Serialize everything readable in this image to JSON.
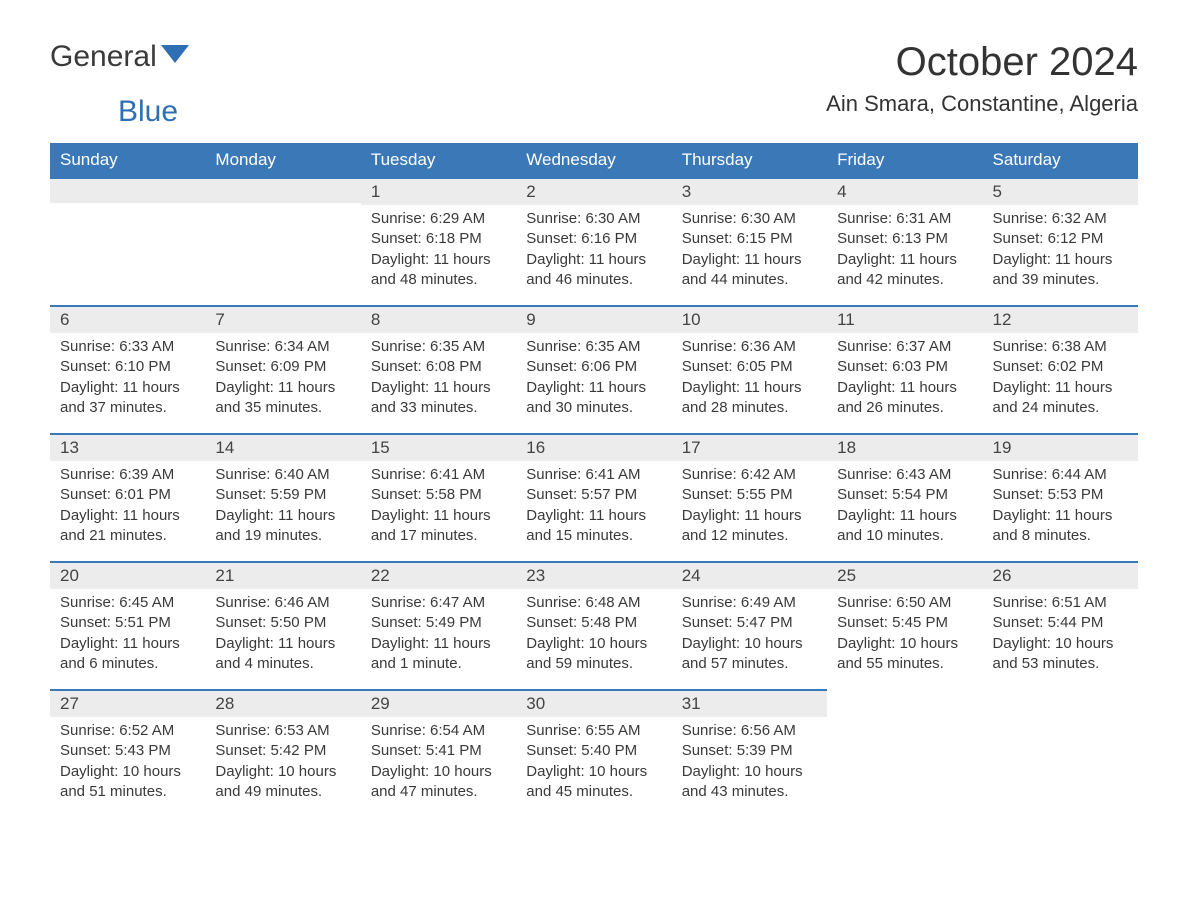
{
  "brand": {
    "name_part1": "General",
    "name_part2": "Blue"
  },
  "title": "October 2024",
  "location": "Ain Smara, Constantine, Algeria",
  "colors": {
    "header_bg": "#3a78b8",
    "header_text": "#ffffff",
    "daynum_bg": "#ececec",
    "border_top": "#3a78b8",
    "body_text": "#3a3a3a",
    "brand_blue": "#2f6fb3"
  },
  "typography": {
    "title_fontsize": 40,
    "location_fontsize": 22,
    "header_fontsize": 17,
    "daynum_fontsize": 17,
    "body_fontsize": 15
  },
  "weekdays": [
    "Sunday",
    "Monday",
    "Tuesday",
    "Wednesday",
    "Thursday",
    "Friday",
    "Saturday"
  ],
  "leading_blanks": 2,
  "days": [
    {
      "n": 1,
      "sr": "6:29 AM",
      "ss": "6:18 PM",
      "dl": "11 hours and 48 minutes."
    },
    {
      "n": 2,
      "sr": "6:30 AM",
      "ss": "6:16 PM",
      "dl": "11 hours and 46 minutes."
    },
    {
      "n": 3,
      "sr": "6:30 AM",
      "ss": "6:15 PM",
      "dl": "11 hours and 44 minutes."
    },
    {
      "n": 4,
      "sr": "6:31 AM",
      "ss": "6:13 PM",
      "dl": "11 hours and 42 minutes."
    },
    {
      "n": 5,
      "sr": "6:32 AM",
      "ss": "6:12 PM",
      "dl": "11 hours and 39 minutes."
    },
    {
      "n": 6,
      "sr": "6:33 AM",
      "ss": "6:10 PM",
      "dl": "11 hours and 37 minutes."
    },
    {
      "n": 7,
      "sr": "6:34 AM",
      "ss": "6:09 PM",
      "dl": "11 hours and 35 minutes."
    },
    {
      "n": 8,
      "sr": "6:35 AM",
      "ss": "6:08 PM",
      "dl": "11 hours and 33 minutes."
    },
    {
      "n": 9,
      "sr": "6:35 AM",
      "ss": "6:06 PM",
      "dl": "11 hours and 30 minutes."
    },
    {
      "n": 10,
      "sr": "6:36 AM",
      "ss": "6:05 PM",
      "dl": "11 hours and 28 minutes."
    },
    {
      "n": 11,
      "sr": "6:37 AM",
      "ss": "6:03 PM",
      "dl": "11 hours and 26 minutes."
    },
    {
      "n": 12,
      "sr": "6:38 AM",
      "ss": "6:02 PM",
      "dl": "11 hours and 24 minutes."
    },
    {
      "n": 13,
      "sr": "6:39 AM",
      "ss": "6:01 PM",
      "dl": "11 hours and 21 minutes."
    },
    {
      "n": 14,
      "sr": "6:40 AM",
      "ss": "5:59 PM",
      "dl": "11 hours and 19 minutes."
    },
    {
      "n": 15,
      "sr": "6:41 AM",
      "ss": "5:58 PM",
      "dl": "11 hours and 17 minutes."
    },
    {
      "n": 16,
      "sr": "6:41 AM",
      "ss": "5:57 PM",
      "dl": "11 hours and 15 minutes."
    },
    {
      "n": 17,
      "sr": "6:42 AM",
      "ss": "5:55 PM",
      "dl": "11 hours and 12 minutes."
    },
    {
      "n": 18,
      "sr": "6:43 AM",
      "ss": "5:54 PM",
      "dl": "11 hours and 10 minutes."
    },
    {
      "n": 19,
      "sr": "6:44 AM",
      "ss": "5:53 PM",
      "dl": "11 hours and 8 minutes."
    },
    {
      "n": 20,
      "sr": "6:45 AM",
      "ss": "5:51 PM",
      "dl": "11 hours and 6 minutes."
    },
    {
      "n": 21,
      "sr": "6:46 AM",
      "ss": "5:50 PM",
      "dl": "11 hours and 4 minutes."
    },
    {
      "n": 22,
      "sr": "6:47 AM",
      "ss": "5:49 PM",
      "dl": "11 hours and 1 minute."
    },
    {
      "n": 23,
      "sr": "6:48 AM",
      "ss": "5:48 PM",
      "dl": "10 hours and 59 minutes."
    },
    {
      "n": 24,
      "sr": "6:49 AM",
      "ss": "5:47 PM",
      "dl": "10 hours and 57 minutes."
    },
    {
      "n": 25,
      "sr": "6:50 AM",
      "ss": "5:45 PM",
      "dl": "10 hours and 55 minutes."
    },
    {
      "n": 26,
      "sr": "6:51 AM",
      "ss": "5:44 PM",
      "dl": "10 hours and 53 minutes."
    },
    {
      "n": 27,
      "sr": "6:52 AM",
      "ss": "5:43 PM",
      "dl": "10 hours and 51 minutes."
    },
    {
      "n": 28,
      "sr": "6:53 AM",
      "ss": "5:42 PM",
      "dl": "10 hours and 49 minutes."
    },
    {
      "n": 29,
      "sr": "6:54 AM",
      "ss": "5:41 PM",
      "dl": "10 hours and 47 minutes."
    },
    {
      "n": 30,
      "sr": "6:55 AM",
      "ss": "5:40 PM",
      "dl": "10 hours and 45 minutes."
    },
    {
      "n": 31,
      "sr": "6:56 AM",
      "ss": "5:39 PM",
      "dl": "10 hours and 43 minutes."
    }
  ],
  "labels": {
    "sunrise": "Sunrise:",
    "sunset": "Sunset:",
    "daylight": "Daylight:"
  }
}
